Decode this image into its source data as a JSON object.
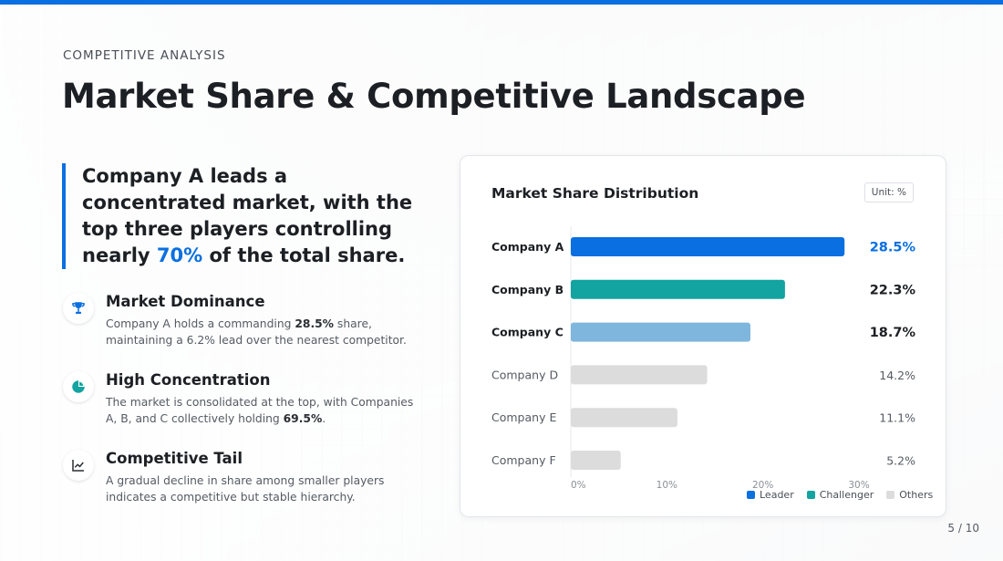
{
  "eyebrow": "COMPETITIVE ANALYSIS",
  "title": "Market Share & Competitive Landscape",
  "callout": {
    "before": "Company A leads a concentrated market, with the top three players controlling nearly ",
    "highlight": "70%",
    "after": " of the total share."
  },
  "features": [
    {
      "icon": "trophy-icon",
      "title": "Market Dominance",
      "desc_before": "Company A holds a commanding ",
      "desc_bold": "28.5%",
      "desc_after": " share, maintaining a 6.2% lead over the nearest competitor."
    },
    {
      "icon": "pie-chart-icon",
      "title": "High Concentration",
      "desc_before": "The market is consolidated at the top, with Companies A, B, and C collectively holding ",
      "desc_bold": "69.5%",
      "desc_after": "."
    },
    {
      "icon": "line-chart-icon",
      "title": "Competitive Tail",
      "desc_before": "A gradual decline in share among smaller players indicates a competitive but stable hierarchy.",
      "desc_bold": "",
      "desc_after": ""
    }
  ],
  "colors": {
    "leader": "#0a6fe0",
    "challenger": "#13a3a0",
    "challenger_light": "#7fb6dd",
    "others": "#dcdcdc",
    "accent_text": "#0a6fe0"
  },
  "chart_data": {
    "type": "bar",
    "orientation": "horizontal",
    "title": "Market Share Distribution",
    "unit_label": "Unit: %",
    "categories": [
      "Company A",
      "Company B",
      "Company C",
      "Company D",
      "Company E",
      "Company F"
    ],
    "values": [
      28.5,
      22.3,
      18.7,
      14.2,
      11.1,
      5.2
    ],
    "value_labels": [
      "28.5%",
      "22.3%",
      "18.7%",
      "14.2%",
      "11.1%",
      "5.2%"
    ],
    "groups": [
      "leader",
      "challenger",
      "challenger_light",
      "others",
      "others",
      "others"
    ],
    "xlim": [
      0,
      30
    ],
    "xticks": [
      "0%",
      "10%",
      "20%",
      "30%"
    ],
    "legend": [
      {
        "name": "Leader",
        "color": "#0a6fe0"
      },
      {
        "name": "Challenger",
        "color": "#13a3a0"
      },
      {
        "name": "Others",
        "color": "#dcdcdc"
      }
    ],
    "legend_position": "bottom-right"
  },
  "pager": "5 / 10"
}
